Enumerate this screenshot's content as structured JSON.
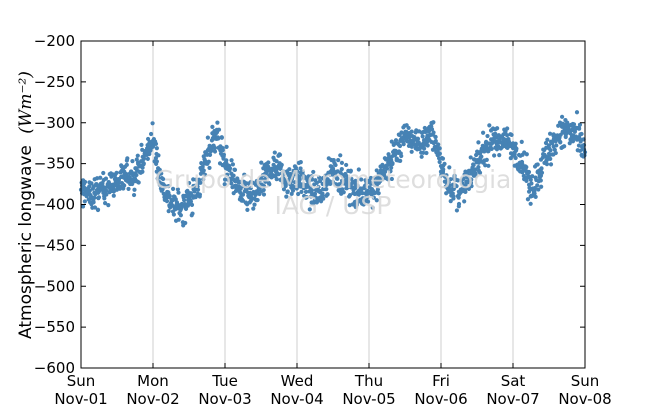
{
  "chart_data": {
    "type": "scatter",
    "ylabel": "Atmospheric longwave",
    "ylabel_unit": "(Wm⁻²)",
    "ylim": [
      -600,
      -200
    ],
    "yticks": [
      -200,
      -250,
      -300,
      -350,
      -400,
      -450,
      -500,
      -550,
      -600
    ],
    "ytick_labels": [
      "−200",
      "−250",
      "−300",
      "−350",
      "−400",
      "−450",
      "−500",
      "−550",
      "−600"
    ],
    "xlim": [
      "2015-11-01",
      "2015-11-08"
    ],
    "xticks": [
      {
        "date": "2015-11-01",
        "day": "Sun",
        "label": "Nov-01"
      },
      {
        "date": "2015-11-02",
        "day": "Mon",
        "label": "Nov-02"
      },
      {
        "date": "2015-11-03",
        "day": "Tue",
        "label": "Nov-03"
      },
      {
        "date": "2015-11-04",
        "day": "Wed",
        "label": "Nov-04"
      },
      {
        "date": "2015-11-05",
        "day": "Thu",
        "label": "Nov-05"
      },
      {
        "date": "2015-11-06",
        "day": "Fri",
        "label": "Nov-06"
      },
      {
        "date": "2015-11-07",
        "day": "Sat",
        "label": "Nov-07"
      },
      {
        "date": "2015-11-08",
        "day": "Sun",
        "label": "Nov-08"
      }
    ],
    "grid": "vertical",
    "marker_color": "#4682b4",
    "series": [
      {
        "x": [
          "2015-11-01 00:00",
          "2015-11-01 03:00",
          "2015-11-01 06:00",
          "2015-11-01 09:00",
          "2015-11-01 12:00",
          "2015-11-01 15:00",
          "2015-11-01 18:00",
          "2015-11-01 21:00",
          "2015-11-02 00:00",
          "2015-11-02 03:00",
          "2015-11-02 06:00",
          "2015-11-02 09:00",
          "2015-11-02 12:00",
          "2015-11-02 15:00",
          "2015-11-02 18:00",
          "2015-11-02 21:00",
          "2015-11-03 00:00",
          "2015-11-03 03:00",
          "2015-11-03 06:00",
          "2015-11-03 09:00",
          "2015-11-03 12:00",
          "2015-11-03 15:00",
          "2015-11-03 18:00",
          "2015-11-03 21:00",
          "2015-11-04 00:00",
          "2015-11-04 03:00",
          "2015-11-04 06:00",
          "2015-11-04 09:00",
          "2015-11-04 12:00",
          "2015-11-04 15:00",
          "2015-11-04 18:00",
          "2015-11-04 21:00",
          "2015-11-05 00:00",
          "2015-11-05 03:00",
          "2015-11-05 06:00",
          "2015-11-05 09:00",
          "2015-11-05 12:00",
          "2015-11-05 15:00",
          "2015-11-05 18:00",
          "2015-11-05 21:00",
          "2015-11-06 00:00",
          "2015-11-06 03:00",
          "2015-11-06 06:00",
          "2015-11-06 09:00",
          "2015-11-06 12:00",
          "2015-11-06 15:00",
          "2015-11-06 18:00",
          "2015-11-06 21:00",
          "2015-11-07 00:00",
          "2015-11-07 03:00",
          "2015-11-07 06:00",
          "2015-11-07 09:00",
          "2015-11-07 12:00",
          "2015-11-07 15:00",
          "2015-11-07 18:00",
          "2015-11-07 21:00",
          "2015-11-08 00:00"
        ],
        "y": [
          -382,
          -388,
          -384,
          -378,
          -372,
          -366,
          -362,
          -344,
          -322,
          -375,
          -398,
          -405,
          -392,
          -382,
          -338,
          -313,
          -350,
          -370,
          -388,
          -392,
          -377,
          -358,
          -352,
          -372,
          -364,
          -379,
          -387,
          -381,
          -356,
          -371,
          -379,
          -386,
          -384,
          -370,
          -356,
          -335,
          -316,
          -321,
          -326,
          -308,
          -353,
          -377,
          -388,
          -372,
          -347,
          -331,
          -323,
          -320,
          -331,
          -348,
          -381,
          -358,
          -331,
          -318,
          -308,
          -317,
          -336
        ]
      }
    ],
    "watermark": [
      "Grupo de Micrometeorologia",
      "IAG / USP"
    ]
  }
}
